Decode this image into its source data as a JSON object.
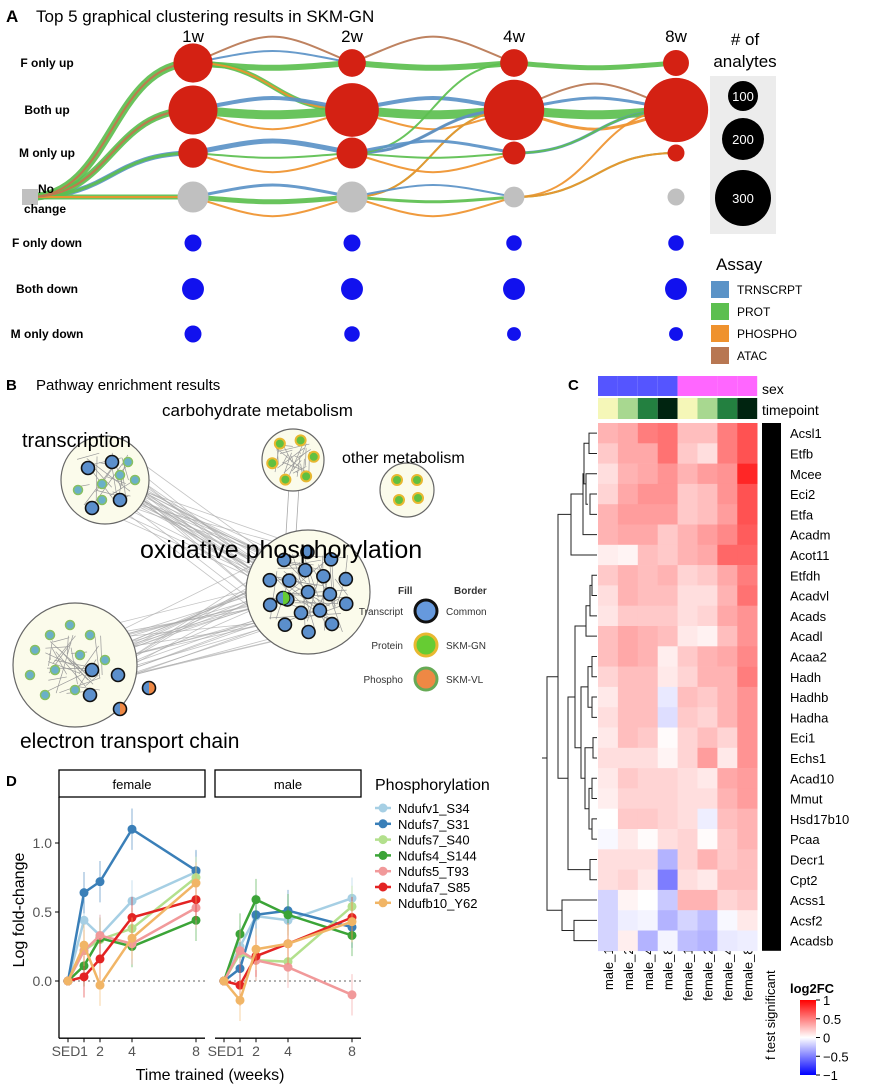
{
  "panelA": {
    "letter": "A",
    "title": "Top 5 graphical clustering results in SKM-GN",
    "timepoints": [
      "1w",
      "2w",
      "4w",
      "8w"
    ],
    "rows": [
      "F only up",
      "Both up",
      "M only up",
      "No change",
      "F only down",
      "Both down",
      "M only down"
    ],
    "row_label_nochange_1": "No",
    "row_label_nochange_2": "change",
    "node_colors": {
      "up": "#d42113",
      "none": "#c0c0c0",
      "down": "#1111ee"
    },
    "node_sizes_analytes": [
      [
        160,
        250,
        90,
        100,
        30,
        50,
        30
      ],
      [
        80,
        300,
        100,
        100,
        30,
        50,
        25
      ],
      [
        80,
        380,
        55,
        45,
        25,
        50,
        20
      ],
      [
        70,
        430,
        30,
        30,
        25,
        50,
        20
      ]
    ],
    "size_legend": {
      "title_1": "# of",
      "title_2": "analytes",
      "values": [
        "100",
        "200",
        "300"
      ]
    },
    "assay_legend": {
      "title": "Assay",
      "items": [
        {
          "key": "T",
          "label": "TRNSCRPT",
          "color": "#5b93c7"
        },
        {
          "key": "P",
          "label": "PROT",
          "color": "#5cbf4f"
        },
        {
          "key": "O",
          "label": "PHOSPHO",
          "color": "#ef922e"
        },
        {
          "key": "A",
          "label": "ATAC",
          "color": "#b87752"
        }
      ]
    },
    "edges": [
      [
        "T",
        3,
        0,
        0,
        1,
        2
      ],
      [
        "T",
        3,
        0,
        1,
        1,
        3
      ],
      [
        "T",
        3,
        0,
        2,
        1,
        5
      ],
      [
        "T",
        3,
        0,
        3,
        1,
        2
      ],
      [
        "P",
        3,
        0,
        0,
        1,
        8
      ],
      [
        "P",
        3,
        0,
        1,
        1,
        7
      ],
      [
        "P",
        3,
        0,
        2,
        1,
        3
      ],
      [
        "P",
        3,
        0,
        3,
        1,
        5
      ],
      [
        "O",
        3,
        0,
        0,
        1,
        2
      ],
      [
        "O",
        3,
        0,
        1,
        1,
        2
      ],
      [
        "O",
        3,
        0,
        3,
        1,
        2
      ],
      [
        "A",
        3,
        0,
        0,
        1,
        2
      ],
      [
        "A",
        3,
        0,
        1,
        1,
        2
      ],
      [
        "A",
        0,
        1,
        0,
        2,
        2
      ],
      [
        "T",
        0,
        1,
        0,
        2,
        2
      ],
      [
        "P",
        0,
        1,
        0,
        2,
        6
      ],
      [
        "P",
        0,
        1,
        1,
        2,
        5
      ],
      [
        "O",
        0,
        1,
        1,
        2,
        2
      ],
      [
        "T",
        1,
        1,
        1,
        2,
        4
      ],
      [
        "P",
        1,
        1,
        1,
        2,
        9
      ],
      [
        "O",
        1,
        1,
        1,
        2,
        2
      ],
      [
        "T",
        2,
        1,
        2,
        2,
        5
      ],
      [
        "P",
        2,
        1,
        2,
        2,
        2
      ],
      [
        "O",
        2,
        1,
        2,
        2,
        2
      ],
      [
        "T",
        3,
        1,
        3,
        2,
        3
      ],
      [
        "P",
        3,
        1,
        3,
        2,
        5
      ],
      [
        "O",
        3,
        1,
        3,
        2,
        2
      ],
      [
        "A",
        0,
        2,
        0,
        3,
        2
      ],
      [
        "P",
        0,
        2,
        0,
        3,
        6
      ],
      [
        "T",
        1,
        2,
        1,
        3,
        4
      ],
      [
        "P",
        1,
        2,
        1,
        3,
        9
      ],
      [
        "O",
        1,
        2,
        1,
        3,
        2
      ],
      [
        "A",
        2,
        2,
        1,
        3,
        2
      ],
      [
        "T",
        2,
        2,
        1,
        3,
        3
      ],
      [
        "P",
        2,
        2,
        0,
        3,
        2
      ],
      [
        "P",
        3,
        2,
        1,
        3,
        2
      ],
      [
        "O",
        3,
        2,
        1,
        3,
        2
      ],
      [
        "T",
        2,
        2,
        2,
        3,
        3
      ],
      [
        "P",
        2,
        2,
        2,
        3,
        2
      ],
      [
        "O",
        2,
        2,
        2,
        3,
        2
      ],
      [
        "T",
        3,
        2,
        3,
        3,
        2
      ],
      [
        "P",
        3,
        2,
        3,
        3,
        3
      ],
      [
        "O",
        3,
        2,
        3,
        3,
        2
      ],
      [
        "P",
        0,
        3,
        0,
        4,
        5
      ],
      [
        "A",
        1,
        3,
        1,
        4,
        2
      ],
      [
        "T",
        1,
        3,
        1,
        4,
        3
      ],
      [
        "P",
        1,
        3,
        1,
        4,
        9
      ],
      [
        "O",
        1,
        3,
        1,
        4,
        3
      ],
      [
        "T",
        2,
        3,
        1,
        4,
        3
      ],
      [
        "P",
        2,
        3,
        1,
        4,
        2
      ],
      [
        "O",
        3,
        3,
        1,
        4,
        2
      ],
      [
        "P",
        3,
        3,
        2,
        4,
        2
      ],
      [
        "O",
        3,
        3,
        2,
        4,
        2
      ]
    ]
  },
  "panelB": {
    "letter": "B",
    "title": "Pathway enrichment results",
    "clusters": {
      "transcription": "transcription",
      "carbohydrate": "carbohydrate metabolism",
      "other": "other metabolism",
      "oxphos": "oxidative phosphorylation",
      "etc": "electron transport chain"
    },
    "legend": {
      "fill_title": "Fill",
      "border_title": "Border",
      "fill_items": [
        "Transcript",
        "Protein",
        "Phospho"
      ],
      "border_items": [
        "Common",
        "SKM-GN",
        "SKM-VL"
      ],
      "fill_colors": [
        "#6699dd",
        "#66cc33",
        "#ee8844"
      ],
      "border_colors": [
        "#111111",
        "#e8b830",
        "#66aa55"
      ]
    }
  },
  "panelC": {
    "letter": "C",
    "annotation_labels": {
      "sex": "sex",
      "timepoint": "timepoint",
      "significant": "f test  significant"
    },
    "sex_colors": {
      "male": "#5555ff",
      "female": "#ff66ff"
    },
    "timepoint_colors": [
      "#f5f7b8",
      "#a8d890",
      "#238040",
      "#002410"
    ],
    "legend": {
      "title": "log2FC",
      "ticks": [
        "1",
        "0.5",
        "0",
        "−0.5",
        "−1"
      ]
    }
  },
  "panelD": {
    "letter": "D",
    "facets": [
      "female",
      "male"
    ],
    "legend_title": "Phosphorylation"
  },
  "chart_data": [
    {
      "type": "heatmap",
      "columns": [
        "male_1w",
        "male_2w",
        "male_4w",
        "male_8w",
        "female_1w",
        "female_2w",
        "female_4w",
        "female_8w"
      ],
      "rows": [
        "Acsl1",
        "Etfb",
        "Mcee",
        "Eci2",
        "Etfa",
        "Acadm",
        "Acot11",
        "Etfdh",
        "Acadvl",
        "Acads",
        "Acadl",
        "Acaa2",
        "Hadh",
        "Hadhb",
        "Hadha",
        "Eci1",
        "Echs1",
        "Acad10",
        "Mmut",
        "Hsd17b10",
        "Pcaa",
        "Decr1",
        "Cpt2",
        "Acss1",
        "Acsf2",
        "Acadsb"
      ],
      "values": [
        [
          0.35,
          0.4,
          0.6,
          0.65,
          0.3,
          0.3,
          0.6,
          0.8
        ],
        [
          0.25,
          0.4,
          0.4,
          0.65,
          0.25,
          0.15,
          0.6,
          0.8
        ],
        [
          0.15,
          0.35,
          0.4,
          0.5,
          0.35,
          0.45,
          0.5,
          1.0
        ],
        [
          0.2,
          0.4,
          0.5,
          0.5,
          0.25,
          0.3,
          0.5,
          0.8
        ],
        [
          0.35,
          0.45,
          0.45,
          0.45,
          0.25,
          0.3,
          0.45,
          0.8
        ],
        [
          0.35,
          0.4,
          0.4,
          0.25,
          0.35,
          0.45,
          0.55,
          0.75
        ],
        [
          0.08,
          0.05,
          0.3,
          0.25,
          0.35,
          0.4,
          0.7,
          0.7
        ],
        [
          0.25,
          0.35,
          0.3,
          0.35,
          0.2,
          0.25,
          0.4,
          0.6
        ],
        [
          0.15,
          0.35,
          0.3,
          0.3,
          0.15,
          0.15,
          0.35,
          0.65
        ],
        [
          0.12,
          0.25,
          0.25,
          0.25,
          0.15,
          0.2,
          0.4,
          0.5
        ],
        [
          0.3,
          0.4,
          0.35,
          0.3,
          0.1,
          0.06,
          0.3,
          0.5
        ],
        [
          0.3,
          0.4,
          0.35,
          0.08,
          0.25,
          0.35,
          0.4,
          0.55
        ],
        [
          0.2,
          0.3,
          0.3,
          0.1,
          0.2,
          0.35,
          0.35,
          0.6
        ],
        [
          0.1,
          0.3,
          0.3,
          -0.1,
          0.3,
          0.25,
          0.35,
          0.5
        ],
        [
          0.15,
          0.3,
          0.3,
          -0.15,
          0.25,
          0.2,
          0.35,
          0.5
        ],
        [
          0.1,
          0.3,
          0.25,
          0.02,
          0.2,
          0.3,
          0.2,
          0.5
        ],
        [
          0.15,
          0.15,
          0.15,
          0.05,
          0.2,
          0.45,
          0.1,
          0.5
        ],
        [
          0.1,
          0.25,
          0.2,
          0.2,
          0.15,
          0.1,
          0.4,
          0.45
        ],
        [
          0.08,
          0.2,
          0.2,
          0.2,
          0.15,
          0.15,
          0.35,
          0.45
        ],
        [
          0.0,
          0.25,
          0.25,
          0.2,
          0.15,
          -0.08,
          0.3,
          0.35
        ],
        [
          -0.03,
          0.1,
          0.02,
          0.15,
          0.2,
          0.02,
          0.25,
          0.35
        ],
        [
          0.15,
          0.15,
          0.15,
          -0.35,
          0.2,
          0.35,
          0.25,
          0.3
        ],
        [
          0.15,
          0.2,
          0.1,
          -0.6,
          0.15,
          0.1,
          0.3,
          0.3
        ],
        [
          -0.2,
          0.05,
          0.0,
          -0.25,
          0.35,
          0.35,
          0.2,
          0.25
        ],
        [
          -0.2,
          -0.08,
          -0.05,
          -0.35,
          -0.2,
          -0.3,
          -0.03,
          0.1
        ],
        [
          -0.2,
          0.08,
          -0.35,
          -0.05,
          -0.3,
          -0.35,
          -0.1,
          -0.08
        ]
      ],
      "significant": true,
      "color_range": [
        -1,
        1
      ],
      "colors": {
        "low": "#0000ff",
        "mid": "#ffffff",
        "high": "#ff0000"
      }
    },
    {
      "type": "line",
      "xlabel": "Time trained (weeks)",
      "ylabel": "Log fold-change",
      "x_values": [
        0,
        1,
        2,
        4,
        8
      ],
      "x_tick_labels": [
        "SED",
        "1",
        "2",
        "4",
        "8"
      ],
      "y_ticks": [
        0.0,
        0.5,
        1.0
      ],
      "y_tick_labels": [
        "0.0",
        "0.5",
        "1.0"
      ],
      "ylim": [
        -0.4,
        1.3
      ],
      "reference_line": 0,
      "error_bar_halfwidth_approx": 0.15,
      "legend_position": "right",
      "series": [
        {
          "name": "Ndufv1_S34",
          "color": "#a6cfe4",
          "female": [
            0,
            0.44,
            0.33,
            0.58,
            0.79
          ],
          "male": [
            0,
            0.25,
            0.47,
            0.44,
            0.6
          ]
        },
        {
          "name": "Ndufs7_S31",
          "color": "#3a7fb8",
          "female": [
            0,
            0.64,
            0.72,
            1.1,
            0.8
          ],
          "male": [
            0,
            0.09,
            0.48,
            0.51,
            0.39
          ]
        },
        {
          "name": "Ndufs7_S40",
          "color": "#b3e08d",
          "female": [
            0,
            0.22,
            0.3,
            0.38,
            0.75
          ],
          "male": [
            0,
            0.2,
            0.15,
            0.14,
            0.54
          ]
        },
        {
          "name": "Ndufs4_S144",
          "color": "#3ba437",
          "female": [
            0,
            0.11,
            0.31,
            0.25,
            0.44
          ],
          "male": [
            0,
            0.34,
            0.59,
            0.48,
            0.33
          ]
        },
        {
          "name": "Ndufs5_T93",
          "color": "#f1999a",
          "female": [
            0,
            0.22,
            0.33,
            0.27,
            0.53
          ],
          "male": [
            0,
            0.22,
            0.15,
            0.1,
            -0.1
          ]
        },
        {
          "name": "Ndufa7_S85",
          "color": "#e32323",
          "female": [
            0,
            0.03,
            0.16,
            0.46,
            0.59
          ],
          "male": [
            0,
            -0.03,
            0.18,
            0.27,
            0.46
          ]
        },
        {
          "name": "Ndufb10_Y62",
          "color": "#f1b566",
          "female": [
            0,
            0.26,
            -0.03,
            0.31,
            0.71
          ],
          "male": [
            0,
            -0.14,
            0.23,
            0.27,
            0.43
          ]
        }
      ]
    }
  ]
}
